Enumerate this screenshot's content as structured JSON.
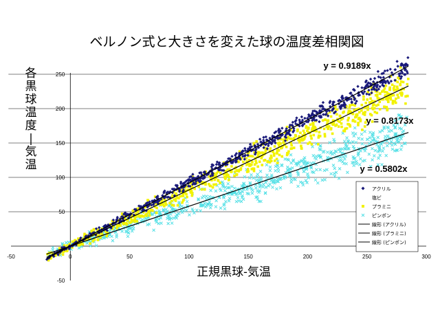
{
  "chart_data": {
    "type": "scatter",
    "title": "ベルノン式と大きさを変えた球の温度差相関図",
    "xlabel": "正規黒球-気温",
    "ylabel": "各黒球温度-気温",
    "xlim": [
      -50,
      300
    ],
    "ylim": [
      -50,
      250
    ],
    "x_ticks": [
      -50,
      0,
      50,
      100,
      150,
      200,
      250,
      300
    ],
    "y_ticks": [
      50,
      100,
      150,
      200,
      250
    ],
    "y_ticks_below": [
      -50
    ],
    "grid": true,
    "legend_position": "right",
    "series": [
      {
        "name": "アクリル",
        "color": "#1a1a7a",
        "marker": "diamond",
        "slope": 0.9189,
        "x_range": [
          -20,
          285
        ],
        "spread": 6,
        "count": 700,
        "points_sample": [
          [
            0,
            0
          ],
          [
            50,
            45.9
          ],
          [
            100,
            91.9
          ],
          [
            150,
            137.8
          ],
          [
            200,
            183.8
          ],
          [
            250,
            229.7
          ],
          [
            280,
            257.3
          ]
        ]
      },
      {
        "name": "塩ビ",
        "color": "#ffffff",
        "marker": "none",
        "slope": null,
        "x_range": null,
        "count": 0
      },
      {
        "name": "プラミニ",
        "color": "#f2f200",
        "marker": "square",
        "slope": 0.8173,
        "x_range": [
          -20,
          285
        ],
        "spread": 12,
        "count": 800,
        "points_sample": [
          [
            0,
            0
          ],
          [
            50,
            40.9
          ],
          [
            100,
            81.7
          ],
          [
            150,
            122.6
          ],
          [
            200,
            163.5
          ],
          [
            250,
            204.3
          ],
          [
            280,
            228.8
          ]
        ]
      },
      {
        "name": "ピンポン",
        "color": "#55e0e6",
        "marker": "x",
        "slope": 0.5802,
        "x_range": [
          -20,
          285
        ],
        "spread": 14,
        "count": 700,
        "points_sample": [
          [
            0,
            0
          ],
          [
            50,
            29.0
          ],
          [
            100,
            58.0
          ],
          [
            150,
            87.0
          ],
          [
            200,
            116.0
          ],
          [
            250,
            145.1
          ],
          [
            280,
            162.5
          ]
        ]
      }
    ],
    "trendlines": [
      {
        "name": "線形 (アクリル)",
        "slope": 0.9189,
        "equation": "y = 0.9189x",
        "color": "#000000"
      },
      {
        "name": "線形 (プラミニ)",
        "slope": 0.8173,
        "equation": "y = 0.8173x",
        "color": "#000000"
      },
      {
        "name": "線形 (ピンポン)",
        "slope": 0.5802,
        "equation": "y = 0.5802x",
        "color": "#000000"
      }
    ],
    "legend_entries": [
      {
        "label": "アクリル",
        "type": "marker",
        "series_index": 0
      },
      {
        "label": "塩ビ",
        "type": "marker",
        "series_index": 1
      },
      {
        "label": "プラミニ",
        "type": "marker",
        "series_index": 2
      },
      {
        "label": "ピンポン",
        "type": "marker",
        "series_index": 3
      },
      {
        "label": "線形 (アクリル)",
        "type": "line",
        "series_index": 0
      },
      {
        "label": "線形 (プラミニ)",
        "type": "line",
        "series_index": 1
      },
      {
        "label": "線形 (ピンポン)",
        "type": "line",
        "series_index": 2
      }
    ]
  }
}
